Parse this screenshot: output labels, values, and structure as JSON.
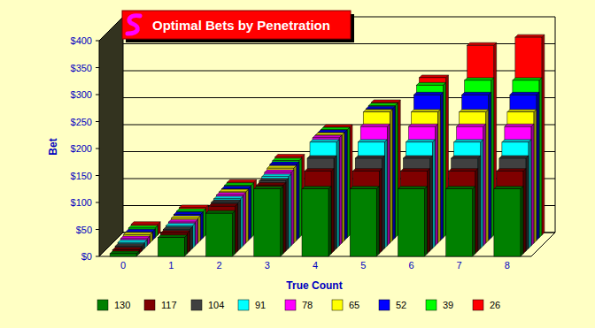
{
  "chart_data": {
    "type": "bar",
    "title": "Optimal Bets by Penetration",
    "x_label": "True Count",
    "y_label": "Bet",
    "categories": [
      "0",
      "1",
      "2",
      "3",
      "4",
      "5",
      "6",
      "7",
      "8"
    ],
    "series": [
      {
        "name": "130",
        "color": "#008000",
        "values": [
          5,
          35,
          80,
          125,
          125,
          125,
          125,
          125,
          125
        ]
      },
      {
        "name": "117",
        "color": "#800000",
        "values": [
          7,
          38,
          88,
          127,
          153,
          153,
          153,
          153,
          153
        ]
      },
      {
        "name": "104",
        "color": "#404040",
        "values": [
          9,
          40,
          90,
          130,
          172,
          172,
          172,
          172,
          172
        ]
      },
      {
        "name": "91",
        "color": "#00ffff",
        "values": [
          11,
          42,
          92,
          133,
          197,
          197,
          197,
          197,
          197
        ]
      },
      {
        "name": "78",
        "color": "#ff00ff",
        "values": [
          13,
          44,
          94,
          136,
          200,
          221,
          221,
          221,
          221
        ]
      },
      {
        "name": "65",
        "color": "#ffff00",
        "values": [
          15,
          46,
          95,
          139,
          200,
          243,
          243,
          243,
          243
        ]
      },
      {
        "name": "52",
        "color": "#0000ff",
        "values": [
          16,
          48,
          96,
          141,
          200,
          244,
          270,
          270,
          270
        ]
      },
      {
        "name": "39",
        "color": "#00ff00",
        "values": [
          18,
          49,
          97,
          143,
          200,
          245,
          283,
          292,
          292
        ]
      },
      {
        "name": "26",
        "color": "#ff0000",
        "values": [
          20,
          51,
          98,
          145,
          200,
          246,
          292,
          352,
          367
        ]
      }
    ],
    "ylim": [
      0,
      400
    ],
    "yticks": [
      {
        "value": 0,
        "label": "$0"
      },
      {
        "value": 50,
        "label": "$50"
      },
      {
        "value": 100,
        "label": "$100"
      },
      {
        "value": 150,
        "label": "$150"
      },
      {
        "value": 200,
        "label": "$200"
      },
      {
        "value": 250,
        "label": "$250"
      },
      {
        "value": 300,
        "label": "$300"
      },
      {
        "value": 350,
        "label": "$350"
      },
      {
        "value": 400,
        "label": "$400"
      }
    ],
    "grid": true,
    "legend": "bottom"
  }
}
